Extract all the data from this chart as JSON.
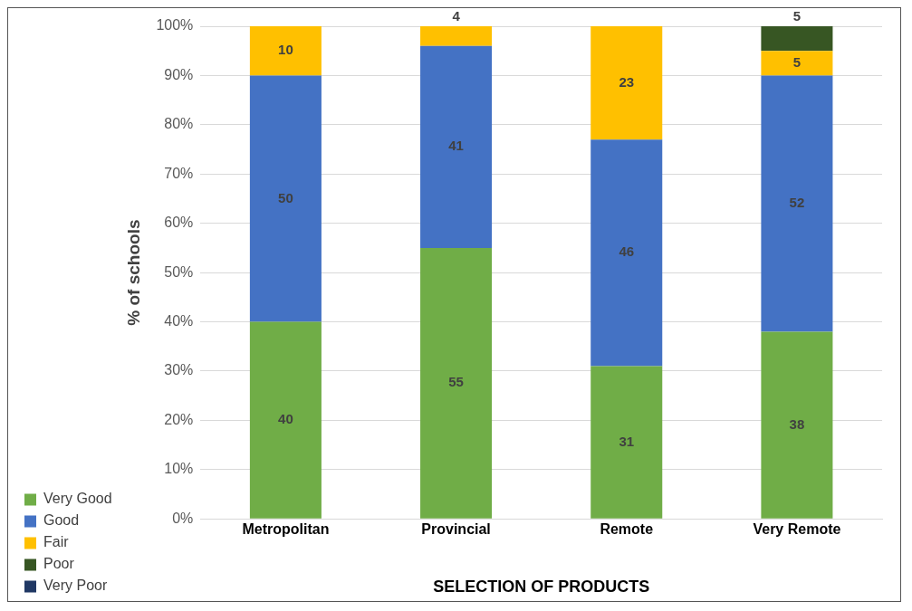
{
  "chart_data": {
    "type": "bar",
    "stacked": true,
    "xlabel": "SELECTION OF PRODUCTS",
    "ylabel": "% of schools",
    "categories": [
      "Metropolitan",
      "Provincial",
      "Remote",
      "Very Remote"
    ],
    "series": [
      {
        "name": "Very Good",
        "color": "#70ad47",
        "values": [
          40,
          55,
          31,
          38
        ]
      },
      {
        "name": "Good",
        "color": "#4472c4",
        "values": [
          50,
          41,
          46,
          52
        ]
      },
      {
        "name": "Fair",
        "color": "#ffc000",
        "values": [
          10,
          4,
          23,
          5
        ]
      },
      {
        "name": "Poor",
        "color": "#375623",
        "values": [
          null,
          null,
          null,
          5
        ]
      },
      {
        "name": "Very Poor",
        "color": "#203864",
        "values": [
          null,
          null,
          null,
          null
        ]
      }
    ],
    "ylim": [
      0,
      100
    ],
    "yticks": [
      {
        "value": 0,
        "label": "0%"
      },
      {
        "value": 10,
        "label": "10%"
      },
      {
        "value": 20,
        "label": "20%"
      },
      {
        "value": 30,
        "label": "30%"
      },
      {
        "value": 40,
        "label": "40%"
      },
      {
        "value": 50,
        "label": "50%"
      },
      {
        "value": 60,
        "label": "60%"
      },
      {
        "value": 70,
        "label": "70%"
      },
      {
        "value": 80,
        "label": "80%"
      },
      {
        "value": 90,
        "label": "90%"
      },
      {
        "value": 100,
        "label": "100%"
      }
    ],
    "grid": "y",
    "legend": "bottom left",
    "data_labels": true
  }
}
